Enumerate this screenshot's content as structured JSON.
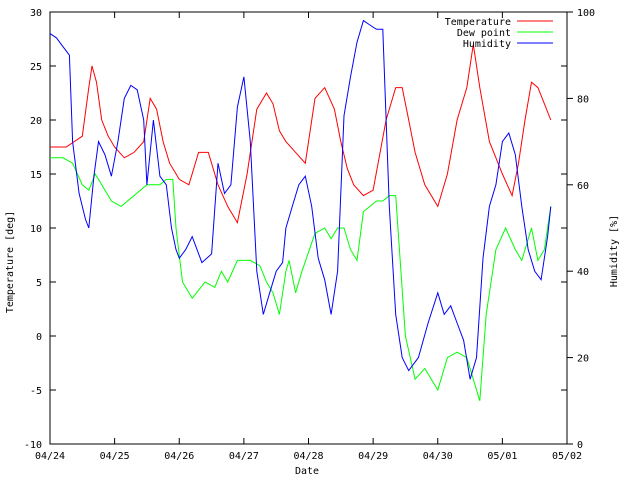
{
  "chart_data": {
    "type": "line",
    "title": "",
    "xlabel": "Date",
    "ylabel": "Temperature [deg]",
    "y2label": "Humidity [%]",
    "x_tick_labels": [
      "04/24",
      "04/25",
      "04/26",
      "04/27",
      "04/28",
      "04/29",
      "04/30",
      "05/01",
      "05/02"
    ],
    "x_range_days": [
      0,
      8
    ],
    "ylim": [
      -10,
      30
    ],
    "y_ticks": [
      -10,
      -5,
      0,
      5,
      10,
      15,
      20,
      25,
      30
    ],
    "y2lim": [
      0,
      100
    ],
    "y2_ticks": [
      0,
      20,
      40,
      60,
      80,
      100
    ],
    "grid": false,
    "legend_position": "top-right",
    "series": [
      {
        "name": "Temperature",
        "axis": "left",
        "color": "#ff0000",
        "x_days": [
          0.0,
          0.25,
          0.5,
          0.6,
          0.65,
          0.72,
          0.8,
          0.9,
          1.0,
          1.15,
          1.3,
          1.45,
          1.55,
          1.65,
          1.75,
          1.85,
          2.0,
          2.15,
          2.3,
          2.45,
          2.6,
          2.75,
          2.9,
          3.05,
          3.2,
          3.35,
          3.45,
          3.55,
          3.65,
          3.8,
          3.95,
          4.1,
          4.25,
          4.4,
          4.5,
          4.6,
          4.7,
          4.85,
          5.0,
          5.2,
          5.35,
          5.45,
          5.55,
          5.65,
          5.8,
          6.0,
          6.15,
          6.3,
          6.45,
          6.55,
          6.65,
          6.8,
          7.0,
          7.15,
          7.25,
          7.35,
          7.45,
          7.55,
          7.65,
          7.75
        ],
        "y": [
          17.5,
          17.5,
          18.5,
          23,
          25,
          23.5,
          20,
          18.5,
          17.5,
          16.5,
          17,
          18,
          22,
          21,
          18,
          16,
          14.5,
          14,
          17,
          17,
          14,
          12,
          10.5,
          15,
          21,
          22.5,
          21.5,
          19,
          18,
          17,
          16,
          22,
          23,
          21,
          18,
          15.5,
          14,
          13,
          13.5,
          20,
          23,
          23,
          20,
          17,
          14,
          12,
          15,
          20,
          23,
          27,
          23,
          18,
          15,
          13,
          16,
          20,
          23.5,
          23,
          21.5,
          20
        ]
      },
      {
        "name": "Dew point",
        "axis": "left",
        "color": "#00ff00",
        "x_days": [
          0.0,
          0.2,
          0.35,
          0.5,
          0.6,
          0.7,
          0.8,
          0.95,
          1.1,
          1.3,
          1.5,
          1.7,
          1.8,
          1.9,
          1.95,
          2.05,
          2.2,
          2.4,
          2.55,
          2.65,
          2.75,
          2.9,
          3.1,
          3.25,
          3.35,
          3.45,
          3.55,
          3.65,
          3.7,
          3.8,
          3.9,
          4.1,
          4.25,
          4.35,
          4.45,
          4.55,
          4.65,
          4.75,
          4.85,
          4.95,
          5.05,
          5.15,
          5.25,
          5.35,
          5.5,
          5.65,
          5.8,
          6.0,
          6.15,
          6.3,
          6.45,
          6.55,
          6.65,
          6.75,
          6.9,
          7.05,
          7.2,
          7.3,
          7.45,
          7.55,
          7.65,
          7.75
        ],
        "y": [
          16.5,
          16.5,
          16,
          14,
          13.5,
          15,
          14,
          12.5,
          12,
          13,
          14,
          14,
          14.5,
          14.5,
          10,
          5,
          3.5,
          5,
          4.5,
          6,
          5,
          7,
          7,
          6.5,
          5,
          4,
          2,
          6,
          7,
          4,
          6,
          9.5,
          10,
          9,
          10,
          10,
          8,
          7,
          11.5,
          12,
          12.5,
          12.5,
          13,
          13,
          0,
          -4,
          -3,
          -5,
          -2,
          -1.5,
          -2,
          -4,
          -6,
          2,
          8,
          10,
          8,
          7,
          10,
          7,
          8,
          12
        ]
      },
      {
        "name": "Humidity",
        "axis": "right",
        "color": "#0000ff",
        "x_days": [
          0.0,
          0.1,
          0.2,
          0.3,
          0.35,
          0.45,
          0.55,
          0.6,
          0.68,
          0.75,
          0.85,
          0.95,
          1.05,
          1.15,
          1.25,
          1.35,
          1.45,
          1.5,
          1.6,
          1.7,
          1.8,
          1.88,
          1.95,
          2.0,
          2.1,
          2.2,
          2.35,
          2.5,
          2.6,
          2.7,
          2.8,
          2.9,
          3.0,
          3.1,
          3.2,
          3.3,
          3.4,
          3.5,
          3.6,
          3.65,
          3.75,
          3.85,
          3.95,
          4.05,
          4.15,
          4.25,
          4.35,
          4.45,
          4.55,
          4.65,
          4.75,
          4.85,
          4.95,
          5.05,
          5.15,
          5.25,
          5.35,
          5.45,
          5.55,
          5.7,
          5.85,
          6.0,
          6.1,
          6.2,
          6.3,
          6.4,
          6.5,
          6.6,
          6.7,
          6.8,
          6.9,
          7.0,
          7.1,
          7.2,
          7.3,
          7.4,
          7.5,
          7.6,
          7.7,
          7.75
        ],
        "y": [
          95,
          94,
          92,
          90,
          70,
          58,
          52,
          50,
          62,
          70,
          67,
          62,
          70,
          80,
          83,
          82,
          75,
          60,
          75,
          62,
          60,
          50,
          45,
          43,
          45,
          48,
          42,
          44,
          65,
          58,
          60,
          78,
          85,
          70,
          40,
          30,
          35,
          40,
          42,
          50,
          55,
          60,
          62,
          55,
          43,
          38,
          30,
          40,
          76,
          85,
          93,
          98,
          97,
          96,
          96,
          55,
          30,
          20,
          17,
          20,
          28,
          35,
          30,
          32,
          28,
          24,
          15,
          20,
          43,
          55,
          60,
          70,
          72,
          67,
          55,
          45,
          40,
          38,
          48,
          55
        ]
      }
    ]
  }
}
